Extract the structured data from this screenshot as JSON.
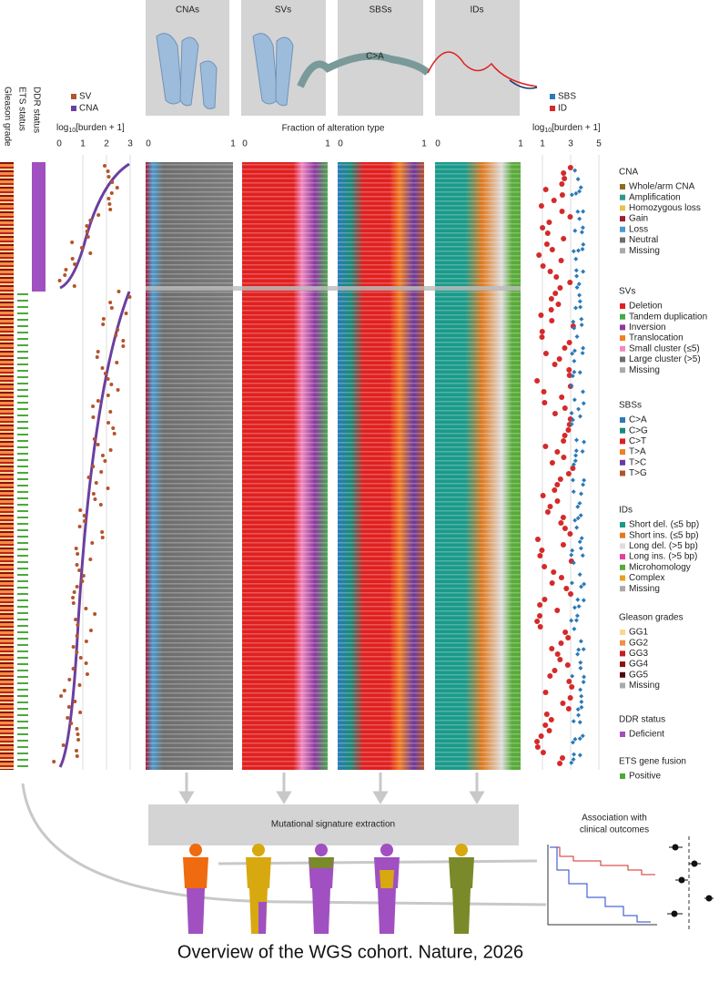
{
  "panels": [
    "CNAs",
    "SVs",
    "SBSs",
    "IDs"
  ],
  "chromosome_label": "C>A",
  "left_labels": [
    "Gleason grade",
    "ETS status",
    "DDR status"
  ],
  "left_burden": {
    "legend": [
      {
        "label": "SV",
        "color": "#b5542a"
      },
      {
        "label": "CNA",
        "color": "#6b3fa0"
      }
    ],
    "title": {
      "prefix": "log",
      "sub": "10",
      "suffix": "[burden + 1]"
    },
    "ticks": [
      "0",
      "1",
      "2",
      "3"
    ]
  },
  "fraction": {
    "title": "Fraction of alteration type",
    "ticks": [
      "0",
      "1"
    ]
  },
  "right_burden": {
    "legend": [
      {
        "label": "SBS",
        "color": "#2a7ab8"
      },
      {
        "label": "ID",
        "color": "#d42a2a"
      }
    ],
    "title": {
      "prefix": "log",
      "sub": "10",
      "suffix": "[burden + 1]"
    },
    "ticks": [
      "1",
      "3",
      "5"
    ]
  },
  "legend": [
    {
      "title": "CNA",
      "items": [
        {
          "label": "Whole/arm CNA",
          "color": "#8c6d1f"
        },
        {
          "label": "Amplification",
          "color": "#2a9a8a"
        },
        {
          "label": "Homozygous loss",
          "color": "#e8c34a"
        },
        {
          "label": "Gain",
          "color": "#a51c30"
        },
        {
          "label": "Loss",
          "color": "#4a9ad0"
        },
        {
          "label": "Neutral",
          "color": "#6e6e6e"
        },
        {
          "label": "Missing",
          "color": "#aaaaaa"
        }
      ]
    },
    {
      "title": "SVs",
      "items": [
        {
          "label": "Deletion",
          "color": "#e02020"
        },
        {
          "label": "Tandem duplication",
          "color": "#4aa84a"
        },
        {
          "label": "Inversion",
          "color": "#8a3aa0"
        },
        {
          "label": "Translocation",
          "color": "#f08020"
        },
        {
          "label": "Small cluster (≤5)",
          "color": "#f08ac0"
        },
        {
          "label": "Large cluster (>5)",
          "color": "#6e6e6e"
        },
        {
          "label": "Missing",
          "color": "#aaaaaa"
        }
      ]
    },
    {
      "title": "SBSs",
      "items": [
        {
          "label": "C>A",
          "color": "#2a7ab8"
        },
        {
          "label": "C>G",
          "color": "#1a8a7a"
        },
        {
          "label": "C>T",
          "color": "#e02020"
        },
        {
          "label": "T>A",
          "color": "#f08020"
        },
        {
          "label": "T>C",
          "color": "#6a3aa0"
        },
        {
          "label": "T>G",
          "color": "#b5542a"
        }
      ]
    },
    {
      "title": "IDs",
      "items": [
        {
          "label": "Short del. (≤5 bp)",
          "color": "#1a9a8a"
        },
        {
          "label": "Short ins. (≤5 bp)",
          "color": "#e07a20"
        },
        {
          "label": "Long del. (>5 bp)",
          "color": "#dddddd"
        },
        {
          "label": "Long ins. (>5 bp)",
          "color": "#e040a0"
        },
        {
          "label": "Microhomology",
          "color": "#5aaa3a"
        },
        {
          "label": "Complex",
          "color": "#e8a020"
        },
        {
          "label": "Missing",
          "color": "#aaaaaa"
        }
      ]
    },
    {
      "title": "Gleason grades",
      "items": [
        {
          "label": "GG1",
          "color": "#f8d890"
        },
        {
          "label": "GG2",
          "color": "#f09040"
        },
        {
          "label": "GG3",
          "color": "#c02020"
        },
        {
          "label": "GG4",
          "color": "#8a1010"
        },
        {
          "label": "GG5",
          "color": "#500808"
        },
        {
          "label": "Missing",
          "color": "#aaaaaa"
        }
      ]
    },
    {
      "title": "DDR status",
      "items": [
        {
          "label": "Deficient",
          "color": "#a050c0"
        }
      ]
    },
    {
      "title": "ETS gene fusion",
      "items": [
        {
          "label": "Positive",
          "color": "#4aaa3a"
        }
      ]
    }
  ],
  "signature_box": "Mutational signature extraction",
  "association": [
    "Association with",
    "clinical outcomes"
  ],
  "caption": "Overview of the WGS cohort. Nature, 2026"
}
